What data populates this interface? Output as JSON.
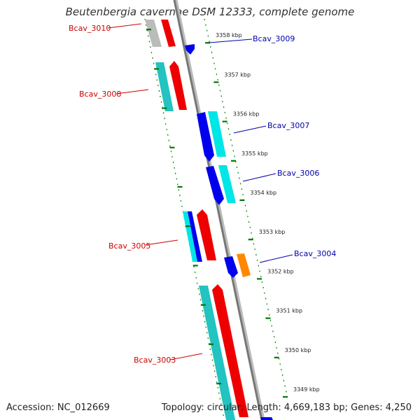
{
  "title": "Beutenbergia cavernae DSM 12333, complete genome",
  "footer": {
    "accession": "Accession: NC_012669",
    "summary": "Topology: circular; Length: 4,669,183 bp; Genes: 4,250"
  },
  "colors": {
    "forward_label": "#cc0000",
    "reverse_label": "#0000aa",
    "tick": "#007700",
    "backbone": "#777777",
    "red": "#ff0000",
    "cyan": "#00e5e5",
    "teal": "#22c3c0",
    "blue": "#0000ee",
    "orange": "#ff8800",
    "gray": "#bbbbbb"
  },
  "axis": {
    "unit": "kbp",
    "ticks": [
      "3349 kbp",
      "3350 kbp",
      "3351 kbp",
      "3352 kbp",
      "3353 kbp",
      "3354 kbp",
      "3355 kbp",
      "3356 kbp",
      "3357 kbp",
      "3358 kbp"
    ]
  },
  "gene_labels": [
    {
      "name": "Bcav_3010",
      "strand": "forward"
    },
    {
      "name": "Bcav_3009",
      "strand": "reverse"
    },
    {
      "name": "Bcav_3008",
      "strand": "forward"
    },
    {
      "name": "Bcav_3007",
      "strand": "reverse"
    },
    {
      "name": "Bcav_3006",
      "strand": "reverse"
    },
    {
      "name": "Bcav_3005",
      "strand": "forward"
    },
    {
      "name": "Bcav_3004",
      "strand": "reverse"
    },
    {
      "name": "Bcav_3003",
      "strand": "forward"
    }
  ]
}
